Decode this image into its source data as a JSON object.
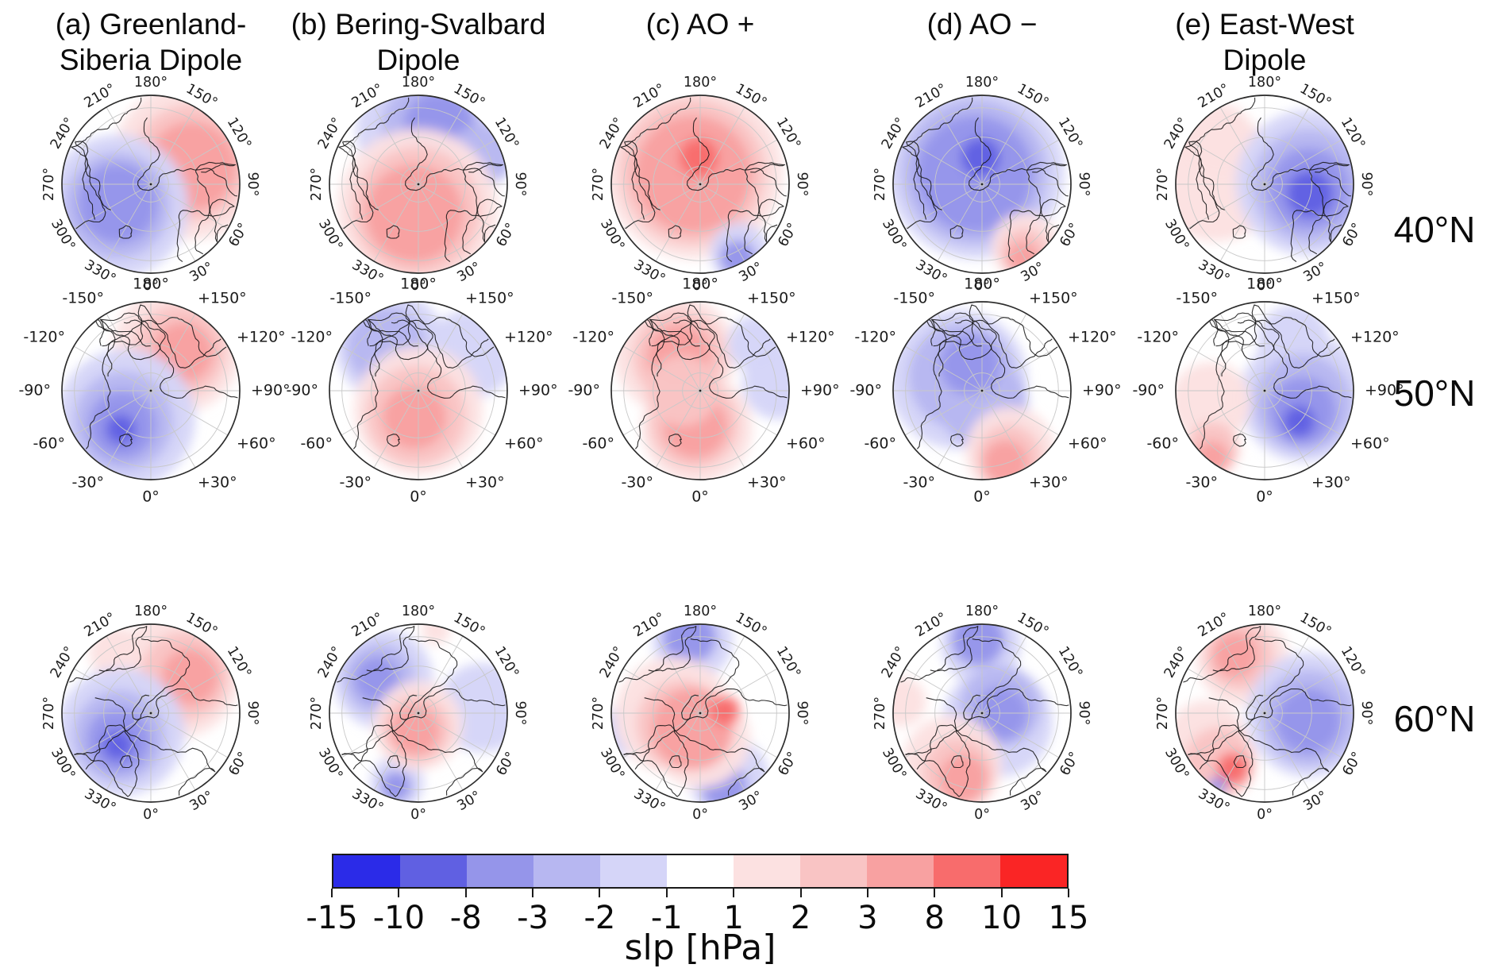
{
  "figure": {
    "columns": [
      {
        "id": "a",
        "title_line1": "(a)  Greenland-",
        "title_line2": "Siberia Dipole"
      },
      {
        "id": "b",
        "title_line1": "(b) Bering-Svalbard",
        "title_line2": "Dipole"
      },
      {
        "id": "c",
        "title_line1": "(c) AO +",
        "title_line2": ""
      },
      {
        "id": "d",
        "title_line1": "(d) AO −",
        "title_line2": ""
      },
      {
        "id": "e",
        "title_line1": "(e) East-West",
        "title_line2": "Dipole"
      }
    ],
    "row_labels": [
      "40°N",
      "50°N",
      "60°N"
    ]
  },
  "colorbar": {
    "label": "slp [hPa]",
    "ticks": [
      "-15",
      "-10",
      "-8",
      "-3",
      "-2",
      "-1",
      "1",
      "2",
      "3",
      "8",
      "10",
      "15"
    ],
    "segment_colors": [
      "#2b2be8",
      "#6060e2",
      "#9595ea",
      "#b7b7f1",
      "#d5d5f8",
      "#ffffff",
      "#fce1e1",
      "#f9c4c4",
      "#f8a1a1",
      "#f86c6c",
      "#fa2525"
    ]
  },
  "map_ticks": {
    "outer_rows_labels": [
      "0°",
      "30°",
      "60°",
      "90°",
      "120°",
      "150°",
      "180°",
      "210°",
      "240°",
      "270°",
      "300°",
      "330°"
    ],
    "middle_row_labels": [
      "0°",
      "+30°",
      "+60°",
      "+90°",
      "+120°",
      "+150°",
      "180°",
      "-150°",
      "-120°",
      "-90°",
      "-60°",
      "-30°"
    ],
    "azimuths": [
      0,
      30,
      60,
      90,
      120,
      150,
      180,
      210,
      240,
      270,
      300,
      330
    ]
  },
  "chart_data": {
    "type": "heatmap",
    "description": "5x3 grid of north-polar stereographic composite maps of sea level pressure anomalies (slp, hPa) for five circulation regimes (columns) at three latitude domains (rows). Anomaly centers given as azimuth (deg, 0 at bottom, counterclockwise), radial fraction, size fraction, value in hPa.",
    "value_units": "hPa",
    "value_range": [
      -15,
      15
    ],
    "columns": [
      "Greenland-Siberia Dipole",
      "Bering-Svalbard Dipole",
      "AO +",
      "AO −",
      "East-West Dipole"
    ],
    "rows": [
      "40°N",
      "50°N",
      "60°N"
    ],
    "panels": [
      {
        "col": 0,
        "row": 0,
        "regime": "Greenland-Siberia Dipole",
        "lat": "40°N",
        "centers": [
          {
            "az": 120,
            "r": 0.52,
            "s": 0.88,
            "v": 1.5
          },
          {
            "az": 118,
            "r": 0.5,
            "s": 0.66,
            "v": 2.5
          },
          {
            "az": 114,
            "r": 0.5,
            "s": 0.5,
            "v": 5
          },
          {
            "az": 303,
            "r": 0.45,
            "s": 0.8,
            "v": -1.5
          },
          {
            "az": 302,
            "r": 0.45,
            "s": 0.6,
            "v": -2.5
          },
          {
            "az": 300,
            "r": 0.43,
            "s": 0.45,
            "v": -5
          }
        ]
      },
      {
        "col": 1,
        "row": 0,
        "regime": "Bering-Svalbard Dipole",
        "lat": "40°N",
        "centers": [
          {
            "az": 175,
            "r": 0.6,
            "s": 0.75,
            "v": -1.5
          },
          {
            "az": 168,
            "r": 0.64,
            "s": 0.55,
            "v": -2.5
          },
          {
            "az": 160,
            "r": 0.68,
            "s": 0.4,
            "v": -5
          },
          {
            "az": 115,
            "r": 0.8,
            "s": 0.35,
            "v": -2.5
          },
          {
            "az": 358,
            "r": 0.28,
            "s": 0.9,
            "v": 1.5
          },
          {
            "az": 356,
            "r": 0.3,
            "s": 0.72,
            "v": 2.5
          },
          {
            "az": 352,
            "r": 0.33,
            "s": 0.55,
            "v": 5
          }
        ]
      },
      {
        "col": 2,
        "row": 0,
        "regime": "AO +",
        "lat": "40°N",
        "centers": [
          {
            "az": 205,
            "r": 0.18,
            "s": 1.0,
            "v": 1.5
          },
          {
            "az": 212,
            "r": 0.16,
            "s": 0.82,
            "v": 2.5
          },
          {
            "az": 216,
            "r": 0.14,
            "s": 0.66,
            "v": 5
          },
          {
            "az": 183,
            "r": 0.3,
            "s": 0.22,
            "v": 9
          },
          {
            "az": 30,
            "r": 0.88,
            "s": 0.33,
            "v": -1.5
          },
          {
            "az": 27,
            "r": 0.93,
            "s": 0.2,
            "v": -5
          }
        ]
      },
      {
        "col": 3,
        "row": 0,
        "regime": "AO −",
        "lat": "40°N",
        "centers": [
          {
            "az": 205,
            "r": 0.18,
            "s": 1.0,
            "v": -1.5
          },
          {
            "az": 212,
            "r": 0.16,
            "s": 0.82,
            "v": -2.5
          },
          {
            "az": 216,
            "r": 0.14,
            "s": 0.66,
            "v": -5
          },
          {
            "az": 183,
            "r": 0.3,
            "s": 0.22,
            "v": -9
          },
          {
            "az": 35,
            "r": 0.85,
            "s": 0.38,
            "v": 1.5
          },
          {
            "az": 32,
            "r": 0.9,
            "s": 0.27,
            "v": 2.5
          },
          {
            "az": 29,
            "r": 0.95,
            "s": 0.18,
            "v": 5
          }
        ]
      },
      {
        "col": 4,
        "row": 0,
        "regime": "East-West Dipole",
        "lat": "40°N",
        "centers": [
          {
            "az": 262,
            "r": 0.55,
            "s": 0.72,
            "v": 1.5
          },
          {
            "az": 225,
            "r": 0.72,
            "s": 0.4,
            "v": 1.5
          },
          {
            "az": 92,
            "r": 0.5,
            "s": 0.82,
            "v": -1.5
          },
          {
            "az": 88,
            "r": 0.5,
            "s": 0.64,
            "v": -2.5
          },
          {
            "az": 84,
            "r": 0.5,
            "s": 0.46,
            "v": -5
          },
          {
            "az": 78,
            "r": 0.52,
            "s": 0.26,
            "v": -9
          }
        ]
      },
      {
        "col": 0,
        "row": 1,
        "regime": "Greenland-Siberia Dipole",
        "lat": "50°N",
        "centers": [
          {
            "az": 148,
            "r": 0.55,
            "s": 0.72,
            "v": 1.5
          },
          {
            "az": 144,
            "r": 0.55,
            "s": 0.52,
            "v": 2.5
          },
          {
            "az": 140,
            "r": 0.56,
            "s": 0.34,
            "v": 5
          },
          {
            "az": 318,
            "r": 0.42,
            "s": 0.78,
            "v": -1.5
          },
          {
            "az": 318,
            "r": 0.46,
            "s": 0.56,
            "v": -2.5
          },
          {
            "az": 320,
            "r": 0.5,
            "s": 0.38,
            "v": -5
          },
          {
            "az": 322,
            "r": 0.55,
            "s": 0.17,
            "v": -9
          }
        ]
      },
      {
        "col": 1,
        "row": 1,
        "regime": "Bering-Svalbard Dipole",
        "lat": "50°N",
        "centers": [
          {
            "az": 212,
            "r": 0.58,
            "s": 0.62,
            "v": -1.5
          },
          {
            "az": 216,
            "r": 0.6,
            "s": 0.45,
            "v": -2.5
          },
          {
            "az": 125,
            "r": 0.72,
            "s": 0.5,
            "v": -1.5
          },
          {
            "az": 0,
            "r": 0.22,
            "s": 0.72,
            "v": 1.5
          },
          {
            "az": 355,
            "r": 0.28,
            "s": 0.56,
            "v": 2.5
          },
          {
            "az": 352,
            "r": 0.3,
            "s": 0.36,
            "v": 5
          }
        ]
      },
      {
        "col": 2,
        "row": 1,
        "regime": "AO +",
        "lat": "50°N",
        "centers": [
          {
            "az": 215,
            "r": 0.5,
            "s": 0.68,
            "v": 1.5
          },
          {
            "az": 355,
            "r": 0.42,
            "s": 0.62,
            "v": 1.5
          },
          {
            "az": 212,
            "r": 0.45,
            "s": 0.52,
            "v": 2.5
          },
          {
            "az": 350,
            "r": 0.38,
            "s": 0.5,
            "v": 2.5
          },
          {
            "az": 212,
            "r": 0.45,
            "s": 0.36,
            "v": 5
          },
          {
            "az": 352,
            "r": 0.4,
            "s": 0.36,
            "v": 5
          },
          {
            "az": 270,
            "r": 0.2,
            "s": 0.4,
            "v": 2.5
          },
          {
            "az": 95,
            "r": 0.88,
            "s": 0.4,
            "v": -1.5
          },
          {
            "az": 130,
            "r": 0.82,
            "s": 0.32,
            "v": -1.5
          }
        ]
      },
      {
        "col": 3,
        "row": 1,
        "regime": "AO −",
        "lat": "50°N",
        "centers": [
          {
            "az": 245,
            "r": 0.3,
            "s": 0.78,
            "v": -1.5
          },
          {
            "az": 235,
            "r": 0.28,
            "s": 0.6,
            "v": -2.5
          },
          {
            "az": 5,
            "r": 0.15,
            "s": 0.5,
            "v": -2.5
          },
          {
            "az": 205,
            "r": 0.32,
            "s": 0.34,
            "v": -5
          },
          {
            "az": 25,
            "r": 0.75,
            "s": 0.5,
            "v": 1.5
          },
          {
            "az": 22,
            "r": 0.8,
            "s": 0.36,
            "v": 2.5
          },
          {
            "az": 18,
            "r": 0.85,
            "s": 0.25,
            "v": 5
          }
        ]
      },
      {
        "col": 4,
        "row": 1,
        "regime": "East-West Dipole",
        "lat": "50°N",
        "centers": [
          {
            "az": 80,
            "r": 0.45,
            "s": 0.72,
            "v": -1.5
          },
          {
            "az": 150,
            "r": 0.65,
            "s": 0.4,
            "v": -1.5
          },
          {
            "az": 72,
            "r": 0.45,
            "s": 0.55,
            "v": -2.5
          },
          {
            "az": 62,
            "r": 0.48,
            "s": 0.38,
            "v": -5
          },
          {
            "az": 48,
            "r": 0.52,
            "s": 0.18,
            "v": -9
          },
          {
            "az": 282,
            "r": 0.62,
            "s": 0.45,
            "v": 1.5
          },
          {
            "az": 318,
            "r": 0.88,
            "s": 0.3,
            "v": 2.5
          },
          {
            "az": 322,
            "r": 0.95,
            "s": 0.18,
            "v": 5
          }
        ]
      },
      {
        "col": 0,
        "row": 2,
        "regime": "Greenland-Siberia Dipole",
        "lat": "60°N",
        "centers": [
          {
            "az": 145,
            "r": 0.52,
            "s": 0.7,
            "v": 1.5
          },
          {
            "az": 210,
            "r": 0.78,
            "s": 0.3,
            "v": 1.5
          },
          {
            "az": 138,
            "r": 0.56,
            "s": 0.5,
            "v": 2.5
          },
          {
            "az": 133,
            "r": 0.6,
            "s": 0.32,
            "v": 5
          },
          {
            "az": 302,
            "r": 0.4,
            "s": 0.72,
            "v": -1.5
          },
          {
            "az": 306,
            "r": 0.44,
            "s": 0.52,
            "v": -2.5
          },
          {
            "az": 310,
            "r": 0.47,
            "s": 0.36,
            "v": -5
          },
          {
            "az": 314,
            "r": 0.52,
            "s": 0.17,
            "v": -9
          }
        ]
      },
      {
        "col": 1,
        "row": 2,
        "regime": "Bering-Svalbard Dipole",
        "lat": "60°N",
        "centers": [
          {
            "az": 226,
            "r": 0.55,
            "s": 0.56,
            "v": -1.5
          },
          {
            "az": 229,
            "r": 0.58,
            "s": 0.4,
            "v": -2.5
          },
          {
            "az": 231,
            "r": 0.6,
            "s": 0.25,
            "v": -5
          },
          {
            "az": 95,
            "r": 0.72,
            "s": 0.5,
            "v": -1.5
          },
          {
            "az": 343,
            "r": 0.82,
            "s": 0.3,
            "v": -1.5
          },
          {
            "az": 343,
            "r": 0.86,
            "s": 0.17,
            "v": -5
          },
          {
            "az": 358,
            "r": 0.14,
            "s": 0.5,
            "v": 1.5
          },
          {
            "az": 354,
            "r": 0.18,
            "s": 0.38,
            "v": 2.5
          },
          {
            "az": 350,
            "r": 0.2,
            "s": 0.27,
            "v": 5
          },
          {
            "az": 168,
            "r": 0.95,
            "s": 0.16,
            "v": 1.5
          }
        ]
      },
      {
        "col": 2,
        "row": 2,
        "regime": "AO +",
        "lat": "60°N",
        "centers": [
          {
            "az": 186,
            "r": 0.82,
            "s": 0.45,
            "v": -1.5
          },
          {
            "az": 188,
            "r": 0.86,
            "s": 0.3,
            "v": -5
          },
          {
            "az": 283,
            "r": 0.88,
            "s": 0.28,
            "v": -1.5
          },
          {
            "az": 24,
            "r": 0.78,
            "s": 0.45,
            "v": -1.5
          },
          {
            "az": 18,
            "r": 0.86,
            "s": 0.26,
            "v": -5
          },
          {
            "az": 275,
            "r": 0.3,
            "s": 0.66,
            "v": 1.5
          },
          {
            "az": 0,
            "r": 0.28,
            "s": 0.56,
            "v": 1.5
          },
          {
            "az": 300,
            "r": 0.25,
            "s": 0.5,
            "v": 2.5
          },
          {
            "az": 335,
            "r": 0.2,
            "s": 0.46,
            "v": 5
          },
          {
            "az": 95,
            "r": 0.28,
            "s": 0.17,
            "v": 9
          }
        ]
      },
      {
        "col": 3,
        "row": 2,
        "regime": "AO −",
        "lat": "60°N",
        "centers": [
          {
            "az": 181,
            "r": 0.78,
            "s": 0.45,
            "v": -1.5
          },
          {
            "az": 183,
            "r": 0.83,
            "s": 0.3,
            "v": -5
          },
          {
            "az": 60,
            "r": 0.2,
            "s": 0.62,
            "v": -1.5
          },
          {
            "az": 110,
            "r": 0.22,
            "s": 0.46,
            "v": -2.5
          },
          {
            "az": 90,
            "r": 0.22,
            "s": 0.3,
            "v": -5
          },
          {
            "az": 330,
            "r": 0.68,
            "s": 0.56,
            "v": 1.5
          },
          {
            "az": 338,
            "r": 0.72,
            "s": 0.4,
            "v": 2.5
          },
          {
            "az": 344,
            "r": 0.76,
            "s": 0.27,
            "v": 5
          },
          {
            "az": 262,
            "r": 0.92,
            "s": 0.28,
            "v": 1.5
          }
        ]
      },
      {
        "col": 4,
        "row": 2,
        "regime": "East-West Dipole",
        "lat": "60°N",
        "centers": [
          {
            "az": 202,
            "r": 0.66,
            "s": 0.52,
            "v": 1.5
          },
          {
            "az": 204,
            "r": 0.7,
            "s": 0.38,
            "v": 2.5
          },
          {
            "az": 207,
            "r": 0.73,
            "s": 0.25,
            "v": 5
          },
          {
            "az": 295,
            "r": 0.72,
            "s": 0.45,
            "v": 1.5
          },
          {
            "az": 318,
            "r": 0.75,
            "s": 0.4,
            "v": 2.5
          },
          {
            "az": 330,
            "r": 0.72,
            "s": 0.18,
            "v": 9
          },
          {
            "az": 88,
            "r": 0.5,
            "s": 0.7,
            "v": -1.5
          },
          {
            "az": 84,
            "r": 0.5,
            "s": 0.54,
            "v": -2.5
          },
          {
            "az": 80,
            "r": 0.5,
            "s": 0.37,
            "v": -5
          },
          {
            "az": 327,
            "r": 0.97,
            "s": 0.1,
            "v": -5
          }
        ]
      }
    ],
    "colorbar_boundaries": [
      -15,
      -10,
      -8,
      -3,
      -2,
      -1,
      1,
      2,
      3,
      8,
      10,
      15
    ],
    "colorbar_colors": [
      "#2b2be8",
      "#6060e2",
      "#9595ea",
      "#b7b7f1",
      "#d5d5f8",
      "#ffffff",
      "#fce1e1",
      "#f9c4c4",
      "#f8a1a1",
      "#f86c6c",
      "#fa2525"
    ],
    "colorbar_label": "slp [hPa]",
    "legend_position": "bottom"
  }
}
